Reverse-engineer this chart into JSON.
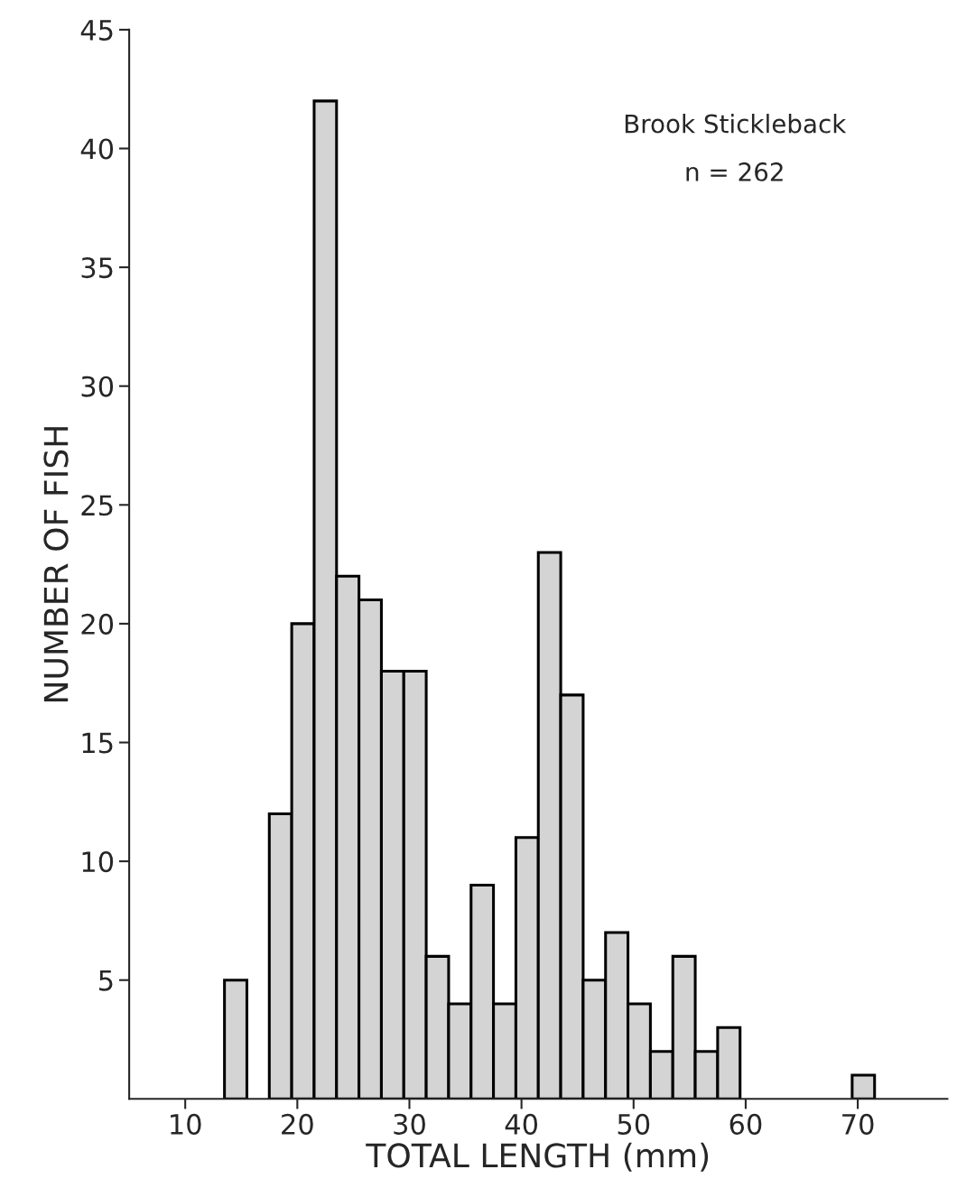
{
  "chart_data": {
    "type": "histogram",
    "xlabel": "TOTAL LENGTH (mm)",
    "ylabel": "NUMBER OF FISH",
    "annotations": [
      "Brook Stickleback",
      "n = 262"
    ],
    "bins": [
      13.5,
      15.5,
      17.5,
      19.5,
      21.5,
      23.5,
      25.5,
      27.5,
      29.5,
      31.5,
      33.5,
      35.5,
      37.5,
      39.5,
      41.5,
      43.5,
      45.5,
      47.5,
      49.5,
      51.5,
      53.5,
      55.5,
      57.5,
      59.5,
      61.5,
      63.5,
      65.5,
      67.5,
      69.5,
      71.5
    ],
    "values": [
      5,
      0,
      12,
      20,
      42,
      22,
      21,
      18,
      18,
      6,
      4,
      9,
      4,
      11,
      23,
      17,
      5,
      7,
      4,
      2,
      6,
      2,
      3,
      0,
      0,
      0,
      0,
      0,
      1
    ],
    "color": "#d4d4d4",
    "xlim": [
      5,
      78
    ],
    "xticks": [
      10,
      20,
      30,
      40,
      50,
      60,
      70
    ],
    "ylim": [
      0,
      45
    ],
    "yticks": [
      5,
      10,
      15,
      20,
      25,
      30,
      35,
      40,
      45
    ],
    "grid": false
  }
}
